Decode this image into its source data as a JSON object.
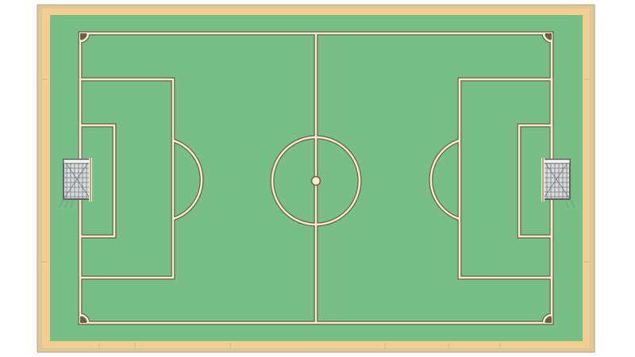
{
  "pitch": {
    "colors": {
      "background": "#ffffff",
      "outer_frame": "#dfc79a",
      "surround": "#f3cf8f",
      "grass": "#77bf86",
      "line_outline": "#6f5e44",
      "line_fill": "#f6ecd2",
      "net": "#77797b"
    },
    "elements": [
      "outer-frame",
      "surround",
      "grass",
      "touchline-outline",
      "halfway-line",
      "center-circle",
      "center-spot",
      "left-penalty-area",
      "left-goal-area",
      "left-penalty-arc",
      "right-penalty-area",
      "right-goal-area",
      "right-penalty-arc",
      "corner-arcs",
      "left-goal",
      "right-goal"
    ]
  }
}
